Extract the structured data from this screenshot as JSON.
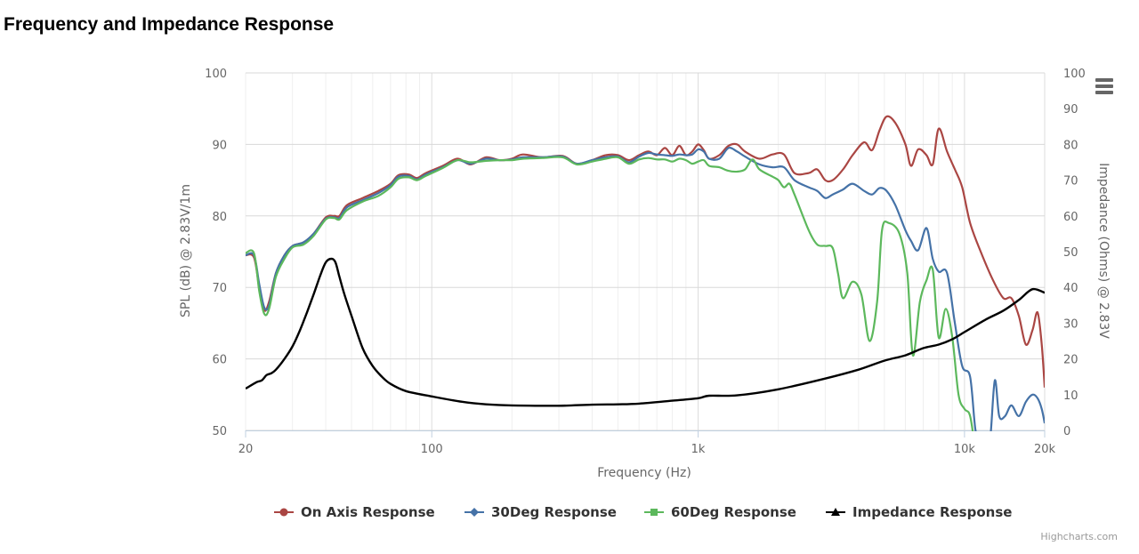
{
  "page": {
    "title": "Frequency and Impedance Response",
    "credits": "Highcharts.com",
    "menu_icon": "hamburger-menu-icon"
  },
  "chart_data": {
    "type": "line",
    "title": "Frequency and Impedance Response",
    "xlabel": "Frequency (Hz)",
    "x_scale": "log",
    "xlim": [
      20,
      20000
    ],
    "x_ticks": [
      {
        "value": 20,
        "label": "20"
      },
      {
        "value": 100,
        "label": "100"
      },
      {
        "value": 1000,
        "label": "1k"
      },
      {
        "value": 10000,
        "label": "10k"
      },
      {
        "value": 20000,
        "label": "20k"
      }
    ],
    "ylabel_left": "SPL (dB) @ 2.83V/1m",
    "ylim_left": [
      50,
      100
    ],
    "y_ticks_left": [
      "50",
      "60",
      "70",
      "80",
      "90",
      "100"
    ],
    "ylabel_right": "Impedance (Ohms) @ 2.83V",
    "ylim_right": [
      0,
      100
    ],
    "y_ticks_right": [
      "0",
      "10",
      "20",
      "30",
      "40",
      "50",
      "60",
      "70",
      "80",
      "90",
      "100"
    ],
    "grid": true,
    "legend_position": "bottom",
    "series": [
      {
        "name": "On Axis Response",
        "color": "#aa4643",
        "marker": "circle",
        "axis": "left",
        "points": [
          [
            20,
            74.5
          ],
          [
            21.5,
            74.2
          ],
          [
            22.5,
            70
          ],
          [
            23.5,
            66.8
          ],
          [
            24.5,
            68
          ],
          [
            26,
            72
          ],
          [
            28,
            74.5
          ],
          [
            30,
            75.8
          ],
          [
            33,
            76.3
          ],
          [
            36,
            77.5
          ],
          [
            40,
            79.8
          ],
          [
            43,
            80
          ],
          [
            45,
            80
          ],
          [
            48,
            81.5
          ],
          [
            55,
            82.5
          ],
          [
            63,
            83.5
          ],
          [
            70,
            84.5
          ],
          [
            75,
            85.7
          ],
          [
            82,
            85.8
          ],
          [
            88,
            85.3
          ],
          [
            95,
            86
          ],
          [
            110,
            87
          ],
          [
            125,
            88
          ],
          [
            140,
            87.2
          ],
          [
            160,
            88.2
          ],
          [
            180,
            87.8
          ],
          [
            200,
            88
          ],
          [
            220,
            88.6
          ],
          [
            260,
            88.2
          ],
          [
            310,
            88.4
          ],
          [
            350,
            87.3
          ],
          [
            400,
            87.8
          ],
          [
            450,
            88.5
          ],
          [
            500,
            88.5
          ],
          [
            550,
            87.8
          ],
          [
            600,
            88.5
          ],
          [
            650,
            89
          ],
          [
            700,
            88.5
          ],
          [
            750,
            89.5
          ],
          [
            800,
            88.5
          ],
          [
            850,
            89.8
          ],
          [
            900,
            88.5
          ],
          [
            950,
            89
          ],
          [
            1000,
            90
          ],
          [
            1050,
            89.2
          ],
          [
            1100,
            88
          ],
          [
            1200,
            88.5
          ],
          [
            1300,
            89.8
          ],
          [
            1400,
            90
          ],
          [
            1500,
            89
          ],
          [
            1700,
            88
          ],
          [
            1900,
            88.6
          ],
          [
            2100,
            88.6
          ],
          [
            2300,
            86
          ],
          [
            2600,
            86
          ],
          [
            2800,
            86.5
          ],
          [
            3000,
            85
          ],
          [
            3200,
            85
          ],
          [
            3500,
            86.5
          ],
          [
            3800,
            88.5
          ],
          [
            4200,
            90.3
          ],
          [
            4500,
            89.2
          ],
          [
            4800,
            92
          ],
          [
            5100,
            93.9
          ],
          [
            5500,
            93
          ],
          [
            6000,
            90
          ],
          [
            6300,
            87
          ],
          [
            6700,
            89.3
          ],
          [
            7200,
            88.5
          ],
          [
            7600,
            87.2
          ],
          [
            8000,
            92.2
          ],
          [
            8600,
            89
          ],
          [
            9200,
            86.5
          ],
          [
            9800,
            84
          ],
          [
            10500,
            79
          ],
          [
            11500,
            75
          ],
          [
            12800,
            71
          ],
          [
            14000,
            68.5
          ],
          [
            15000,
            68.5
          ],
          [
            16000,
            66
          ],
          [
            17000,
            62
          ],
          [
            18000,
            64
          ],
          [
            18800,
            66.5
          ],
          [
            19500,
            62
          ],
          [
            20000,
            56
          ]
        ]
      },
      {
        "name": "30Deg Response",
        "color": "#4572a7",
        "marker": "diamond",
        "axis": "left",
        "points": [
          [
            20,
            74.5
          ],
          [
            21.5,
            74.5
          ],
          [
            22.5,
            70.5
          ],
          [
            23.5,
            67.2
          ],
          [
            24.5,
            67.5
          ],
          [
            26,
            72
          ],
          [
            28,
            74.5
          ],
          [
            30,
            75.8
          ],
          [
            33,
            76.3
          ],
          [
            36,
            77.5
          ],
          [
            40,
            79.6
          ],
          [
            43,
            79.8
          ],
          [
            45,
            79.7
          ],
          [
            48,
            81.2
          ],
          [
            55,
            82.2
          ],
          [
            63,
            83.2
          ],
          [
            70,
            84.3
          ],
          [
            75,
            85.5
          ],
          [
            82,
            85.6
          ],
          [
            88,
            85.1
          ],
          [
            95,
            85.8
          ],
          [
            110,
            86.8
          ],
          [
            125,
            87.8
          ],
          [
            140,
            87.3
          ],
          [
            160,
            88
          ],
          [
            180,
            87.8
          ],
          [
            200,
            87.9
          ],
          [
            220,
            88.2
          ],
          [
            260,
            88.2
          ],
          [
            310,
            88.3
          ],
          [
            350,
            87.3
          ],
          [
            400,
            87.8
          ],
          [
            450,
            88.2
          ],
          [
            500,
            88.3
          ],
          [
            550,
            87.5
          ],
          [
            600,
            88.3
          ],
          [
            650,
            88.8
          ],
          [
            700,
            88.6
          ],
          [
            750,
            88.5
          ],
          [
            800,
            88.4
          ],
          [
            850,
            88.6
          ],
          [
            900,
            88.5
          ],
          [
            950,
            88.6
          ],
          [
            1000,
            89.3
          ],
          [
            1050,
            89
          ],
          [
            1100,
            88
          ],
          [
            1200,
            88
          ],
          [
            1300,
            89.5
          ],
          [
            1400,
            89
          ],
          [
            1500,
            88.3
          ],
          [
            1700,
            87.2
          ],
          [
            1900,
            86.8
          ],
          [
            2100,
            86.8
          ],
          [
            2300,
            85
          ],
          [
            2600,
            84
          ],
          [
            2800,
            83.5
          ],
          [
            3000,
            82.5
          ],
          [
            3200,
            83
          ],
          [
            3500,
            83.7
          ],
          [
            3800,
            84.5
          ],
          [
            4200,
            83.5
          ],
          [
            4500,
            83
          ],
          [
            4800,
            83.9
          ],
          [
            5100,
            83.5
          ],
          [
            5500,
            81.5
          ],
          [
            6000,
            78
          ],
          [
            6300,
            76.5
          ],
          [
            6700,
            75.2
          ],
          [
            7200,
            78.3
          ],
          [
            7600,
            74
          ],
          [
            8000,
            72.2
          ],
          [
            8600,
            72
          ],
          [
            9200,
            65
          ],
          [
            9800,
            59
          ],
          [
            10500,
            57.5
          ],
          [
            11000,
            50
          ],
          [
            11500,
            49
          ],
          [
            12000,
            47
          ],
          [
            12500,
            49
          ],
          [
            13000,
            57
          ],
          [
            13500,
            52
          ],
          [
            14200,
            52
          ],
          [
            15000,
            53.5
          ],
          [
            16000,
            52
          ],
          [
            17000,
            54
          ],
          [
            18000,
            55
          ],
          [
            18800,
            54.5
          ],
          [
            19500,
            53
          ],
          [
            20000,
            51
          ]
        ]
      },
      {
        "name": "60Deg Response",
        "color": "#5cb85c",
        "marker": "square",
        "axis": "left",
        "points": [
          [
            20,
            74.8
          ],
          [
            21.5,
            74.8
          ],
          [
            22.5,
            69.5
          ],
          [
            23.5,
            66.3
          ],
          [
            24.5,
            67
          ],
          [
            26,
            71.5
          ],
          [
            28,
            74
          ],
          [
            30,
            75.6
          ],
          [
            33,
            76
          ],
          [
            36,
            77.2
          ],
          [
            40,
            79.5
          ],
          [
            43,
            79.7
          ],
          [
            45,
            79.5
          ],
          [
            48,
            80.8
          ],
          [
            55,
            82
          ],
          [
            63,
            82.8
          ],
          [
            70,
            84
          ],
          [
            75,
            85.2
          ],
          [
            82,
            85.4
          ],
          [
            88,
            85
          ],
          [
            95,
            85.6
          ],
          [
            110,
            86.7
          ],
          [
            125,
            87.8
          ],
          [
            140,
            87.5
          ],
          [
            160,
            87.7
          ],
          [
            180,
            87.8
          ],
          [
            200,
            87.8
          ],
          [
            220,
            88
          ],
          [
            260,
            88.1
          ],
          [
            310,
            88.2
          ],
          [
            350,
            87.2
          ],
          [
            400,
            87.6
          ],
          [
            450,
            88
          ],
          [
            500,
            88.2
          ],
          [
            550,
            87.3
          ],
          [
            600,
            87.9
          ],
          [
            650,
            88.1
          ],
          [
            700,
            87.9
          ],
          [
            750,
            87.9
          ],
          [
            800,
            87.6
          ],
          [
            850,
            88
          ],
          [
            900,
            87.8
          ],
          [
            950,
            87.3
          ],
          [
            1000,
            87.6
          ],
          [
            1050,
            87.8
          ],
          [
            1100,
            87
          ],
          [
            1200,
            86.8
          ],
          [
            1300,
            86.3
          ],
          [
            1400,
            86.2
          ],
          [
            1500,
            86.5
          ],
          [
            1600,
            87.9
          ],
          [
            1700,
            86.5
          ],
          [
            1900,
            85.5
          ],
          [
            2000,
            85
          ],
          [
            2100,
            84
          ],
          [
            2200,
            84.5
          ],
          [
            2300,
            83
          ],
          [
            2600,
            78
          ],
          [
            2800,
            76
          ],
          [
            3000,
            75.8
          ],
          [
            3200,
            75.5
          ],
          [
            3350,
            72
          ],
          [
            3500,
            68.5
          ],
          [
            3800,
            70.8
          ],
          [
            4100,
            69
          ],
          [
            4400,
            62.5
          ],
          [
            4700,
            68
          ],
          [
            4900,
            78
          ],
          [
            5200,
            79
          ],
          [
            5700,
            77.5
          ],
          [
            6100,
            72
          ],
          [
            6400,
            60.5
          ],
          [
            6800,
            68
          ],
          [
            7200,
            71
          ],
          [
            7600,
            72.5
          ],
          [
            8000,
            63
          ],
          [
            8500,
            67
          ],
          [
            9000,
            63
          ],
          [
            9500,
            55
          ],
          [
            10000,
            53
          ],
          [
            10500,
            52
          ],
          [
            11000,
            47
          ]
        ]
      },
      {
        "name": "Impedance Response",
        "color": "#000000",
        "marker": "triangle",
        "axis": "right",
        "points": [
          [
            20,
            11.7
          ],
          [
            22,
            13.5
          ],
          [
            23,
            14
          ],
          [
            24,
            15.5
          ],
          [
            25,
            16
          ],
          [
            26,
            17
          ],
          [
            28,
            20
          ],
          [
            30,
            23.5
          ],
          [
            32,
            28
          ],
          [
            34,
            33
          ],
          [
            36,
            38
          ],
          [
            38,
            43
          ],
          [
            40,
            47
          ],
          [
            42,
            48
          ],
          [
            43.5,
            47
          ],
          [
            45,
            43
          ],
          [
            47,
            38
          ],
          [
            50,
            32
          ],
          [
            55,
            23
          ],
          [
            60,
            18
          ],
          [
            65,
            15
          ],
          [
            70,
            13
          ],
          [
            80,
            11
          ],
          [
            100,
            9.5
          ],
          [
            130,
            8
          ],
          [
            160,
            7.3
          ],
          [
            200,
            7
          ],
          [
            300,
            6.9
          ],
          [
            400,
            7.2
          ],
          [
            500,
            7.3
          ],
          [
            600,
            7.5
          ],
          [
            800,
            8.3
          ],
          [
            1000,
            9
          ],
          [
            1100,
            9.7
          ],
          [
            1400,
            9.8
          ],
          [
            2000,
            11.5
          ],
          [
            3000,
            14.5
          ],
          [
            4000,
            17
          ],
          [
            5000,
            19.5
          ],
          [
            6000,
            21
          ],
          [
            7000,
            23
          ],
          [
            8000,
            24
          ],
          [
            9000,
            25.5
          ],
          [
            10000,
            27.5
          ],
          [
            12000,
            31
          ],
          [
            14000,
            33.5
          ],
          [
            16000,
            36.5
          ],
          [
            18000,
            39.5
          ],
          [
            20000,
            38.5
          ]
        ]
      }
    ]
  }
}
